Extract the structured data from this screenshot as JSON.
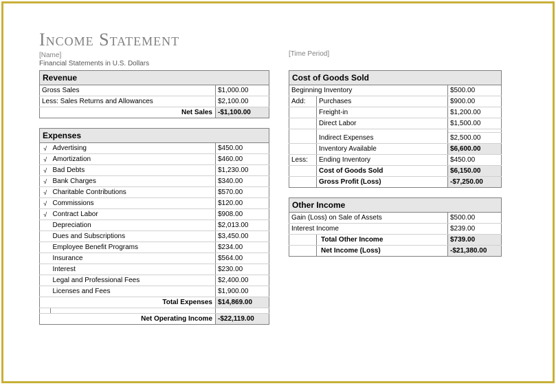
{
  "header": {
    "title": "Income Statement",
    "name_placeholder": "[Name]",
    "subtitle": "Financial Statements in U.S. Dollars",
    "time_period": "[Time Period]"
  },
  "revenue": {
    "section_title": "Revenue",
    "rows": [
      {
        "label": "Gross Sales",
        "value": "$1,000.00"
      },
      {
        "label": "Less: Sales Returns and Allowances",
        "value": "$2,100.00"
      }
    ],
    "net_sales_label": "Net Sales",
    "net_sales_value": "-$1,100.00"
  },
  "expenses": {
    "section_title": "Expenses",
    "rows": [
      {
        "check": "√",
        "label": "Advertising",
        "value": "$450.00"
      },
      {
        "check": "√",
        "label": "Amortization",
        "value": "$460.00"
      },
      {
        "check": "√",
        "label": "Bad Debts",
        "value": "$1,230.00"
      },
      {
        "check": "√",
        "label": "Bank Charges",
        "value": "$340.00"
      },
      {
        "check": "√",
        "label": "Charitable Contributions",
        "value": "$570.00"
      },
      {
        "check": "√",
        "label": "Commissions",
        "value": "$120.00"
      },
      {
        "check": "√",
        "label": "Contract Labor",
        "value": "$908.00"
      },
      {
        "check": "",
        "label": "Depreciation",
        "value": "$2,013.00"
      },
      {
        "check": "",
        "label": "Dues and Subscriptions",
        "value": "$3,450.00"
      },
      {
        "check": "",
        "label": "Employee Benefit Programs",
        "value": "$234.00"
      },
      {
        "check": "",
        "label": "Insurance",
        "value": "$564.00"
      },
      {
        "check": "",
        "label": "Interest",
        "value": "$230.00"
      },
      {
        "check": "",
        "label": "Legal and Professional Fees",
        "value": "$2,400.00"
      },
      {
        "check": "",
        "label": "Licenses and Fees",
        "value": "$1,900.00"
      }
    ],
    "total_label": "Total Expenses",
    "total_value": "$14,869.00",
    "net_op_label": "Net Operating Income",
    "net_op_value": "-$22,119.00"
  },
  "cogs": {
    "section_title": "Cost of Goods Sold",
    "begin_inv_label": "Beginning Inventory",
    "begin_inv_value": "$500.00",
    "add_label": "Add:",
    "add_rows": [
      {
        "label": "Purchases",
        "value": "$900.00"
      },
      {
        "label": "Freight-in",
        "value": "$1,200.00"
      },
      {
        "label": "Direct Labor",
        "value": "$1,500.00"
      }
    ],
    "indirect_label": "Indirect Expenses",
    "indirect_value": "$2,500.00",
    "inv_avail_label": "Inventory Available",
    "inv_avail_value": "$6,600.00",
    "less_label": "Less:",
    "end_inv_label": "Ending Inventory",
    "end_inv_value": "$450.00",
    "cogs_label": "Cost of Goods Sold",
    "cogs_value": "$6,150.00",
    "gross_profit_label": "Gross Profit (Loss)",
    "gross_profit_value": "-$7,250.00"
  },
  "other": {
    "section_title": "Other Income",
    "rows": [
      {
        "label": "Gain (Loss) on Sale of Assets",
        "value": "$500.00"
      },
      {
        "label": "Interest Income",
        "value": "$239.00"
      }
    ],
    "total_label": "Total Other Income",
    "total_value": "$739.00",
    "net_income_label": "Net Income (Loss)",
    "net_income_value": "-$21,380.00"
  },
  "style": {
    "border_color": "#c9b037",
    "grid_border": "#808080",
    "soft_border": "#d0d0d0",
    "header_bg": "#e6e6e6",
    "title_color": "#808080",
    "font_size_body": 10,
    "font_size_header": 12,
    "font_size_title": 26
  }
}
